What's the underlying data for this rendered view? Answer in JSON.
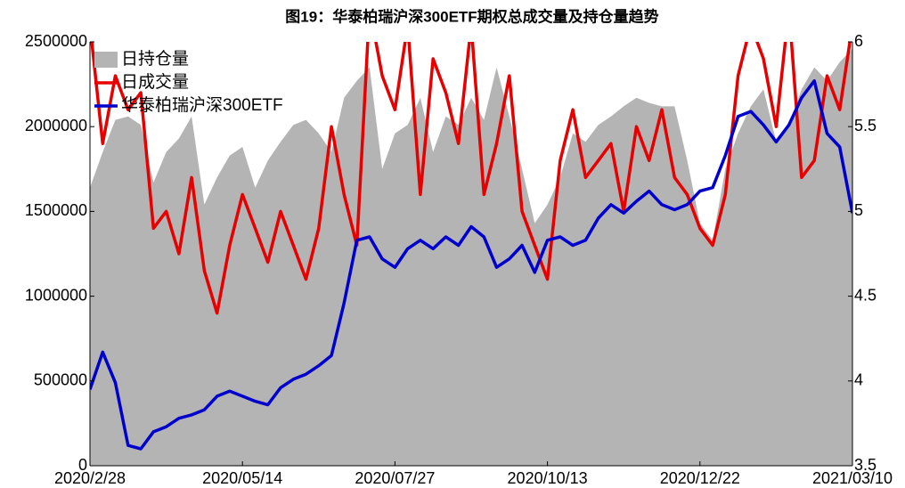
{
  "chart_data": {
    "type": "line",
    "title": "图19：华泰柏瑞沪深300ETF期权总成交量及持仓量趋势",
    "categories": [
      "2020/2/28",
      null,
      null,
      null,
      null,
      null,
      null,
      null,
      null,
      null,
      null,
      null,
      "2020/05/14",
      null,
      null,
      null,
      null,
      null,
      null,
      null,
      null,
      null,
      null,
      null,
      "2020/07/27",
      null,
      null,
      null,
      null,
      null,
      null,
      null,
      null,
      null,
      null,
      null,
      "2020/10/13",
      null,
      null,
      null,
      null,
      null,
      null,
      null,
      null,
      null,
      null,
      null,
      "2020/12/22",
      null,
      null,
      null,
      null,
      null,
      null,
      null,
      null,
      null,
      null,
      null,
      "2021/03/10"
    ],
    "series": [
      {
        "name": "日持仓量",
        "type": "area",
        "color": "#b4b4b4",
        "axis": "y",
        "values": [
          1640000,
          1850000,
          2040000,
          2060000,
          2010000,
          1670000,
          1850000,
          1930000,
          2060000,
          1540000,
          1700000,
          1830000,
          1880000,
          1640000,
          1800000,
          1910000,
          2010000,
          2040000,
          1960000,
          1850000,
          2170000,
          2270000,
          2350000,
          1750000,
          1960000,
          2010000,
          2170000,
          1850000,
          2060000,
          2010000,
          2170000,
          2040000,
          2350000,
          2060000,
          1750000,
          1430000,
          1540000,
          1700000,
          1960000,
          1910000,
          2010000,
          2060000,
          2120000,
          2170000,
          2140000,
          2120000,
          2120000,
          1800000,
          1430000,
          1330000,
          1750000,
          1960000,
          2120000,
          2220000,
          1910000,
          2010000,
          2220000,
          2350000,
          2270000,
          2380000,
          2460000
        ]
      },
      {
        "name": "日成交量",
        "type": "line",
        "color": "#e60000",
        "axis": "y",
        "values": [
          2600000,
          1900000,
          2300000,
          2100000,
          2200000,
          1400000,
          1500000,
          1250000,
          1700000,
          1150000,
          900000,
          1300000,
          1600000,
          1400000,
          1200000,
          1500000,
          1300000,
          1100000,
          1400000,
          2000000,
          1600000,
          1300000,
          2700000,
          2300000,
          2100000,
          2600000,
          1600000,
          2400000,
          2200000,
          1900000,
          2600000,
          1600000,
          1900000,
          2300000,
          1500000,
          1300000,
          1100000,
          1800000,
          2100000,
          1700000,
          1800000,
          1900000,
          1500000,
          2000000,
          1800000,
          2100000,
          1700000,
          1600000,
          1400000,
          1300000,
          1600000,
          2300000,
          2600000,
          2400000,
          2000000,
          2700000,
          1700000,
          1800000,
          2300000,
          2100000,
          2600000
        ]
      },
      {
        "name": "华泰柏瑞沪深300ETF",
        "type": "line",
        "color": "#0000cc",
        "axis": "y2",
        "values": [
          3.95,
          4.17,
          3.99,
          3.62,
          3.6,
          3.7,
          3.73,
          3.78,
          3.8,
          3.83,
          3.91,
          3.94,
          3.91,
          3.88,
          3.86,
          3.96,
          4.01,
          4.04,
          4.09,
          4.15,
          4.46,
          4.83,
          4.85,
          4.72,
          4.67,
          4.78,
          4.83,
          4.78,
          4.85,
          4.8,
          4.91,
          4.85,
          4.67,
          4.72,
          4.8,
          4.64,
          4.83,
          4.85,
          4.8,
          4.83,
          4.96,
          5.04,
          4.99,
          5.06,
          5.12,
          5.04,
          5.01,
          5.04,
          5.12,
          5.14,
          5.33,
          5.56,
          5.59,
          5.51,
          5.41,
          5.51,
          5.67,
          5.77,
          5.46,
          5.38,
          4.99
        ]
      }
    ],
    "ylim": [
      0,
      2500000
    ],
    "yticks": [
      0,
      500000,
      1000000,
      1500000,
      2000000,
      2500000
    ],
    "y2lim": [
      3.5,
      6
    ],
    "y2ticks": [
      3.5,
      4,
      4.5,
      5,
      5.5,
      6
    ],
    "legend": "upper left"
  }
}
